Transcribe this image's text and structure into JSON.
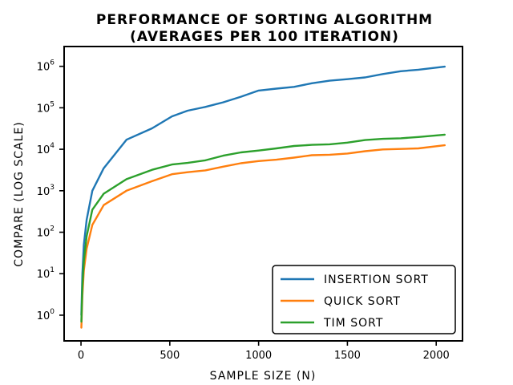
{
  "chart_data": {
    "type": "line",
    "title_lines": [
      "PERFORMANCE OF SORTING ALGORITHM",
      "(AVERAGES PER 100 ITERATION)"
    ],
    "xlabel": "SAMPLE SIZE (N)",
    "ylabel": "COMPARE (LOG SCALE)",
    "xlim": [
      -95,
      2148
    ],
    "ylim": [
      0.24,
      3000000
    ],
    "yscale": "log",
    "grid": false,
    "legend_position": "bottom-right",
    "x_ticks": [
      0,
      500,
      1000,
      1500,
      2000
    ],
    "x_tick_labels": [
      "0",
      "500",
      "1000",
      "1500",
      "2000"
    ],
    "y_ticks": [
      1,
      10,
      100,
      1000,
      10000,
      100000,
      1000000
    ],
    "y_tick_bases": [
      "10",
      "10",
      "10",
      "10",
      "10",
      "10",
      "10"
    ],
    "y_tick_exponents": [
      "0",
      "1",
      "2",
      "3",
      "4",
      "5",
      "6"
    ],
    "series": [
      {
        "name": "INSERTION SORT",
        "color": "#1f77b4",
        "points": [
          [
            2,
            1
          ],
          [
            8,
            10
          ],
          [
            16,
            50
          ],
          [
            32,
            200
          ],
          [
            64,
            1000
          ],
          [
            128,
            3500
          ],
          [
            256,
            17000
          ],
          [
            400,
            32000
          ],
          [
            512,
            62000
          ],
          [
            600,
            85000
          ],
          [
            700,
            105000
          ],
          [
            800,
            135000
          ],
          [
            900,
            185000
          ],
          [
            1000,
            260000
          ],
          [
            1100,
            290000
          ],
          [
            1200,
            320000
          ],
          [
            1300,
            390000
          ],
          [
            1400,
            450000
          ],
          [
            1500,
            490000
          ],
          [
            1600,
            540000
          ],
          [
            1700,
            650000
          ],
          [
            1800,
            760000
          ],
          [
            1900,
            830000
          ],
          [
            2048,
            980000
          ]
        ]
      },
      {
        "name": "QUICK SORT",
        "color": "#ff7f0e",
        "points": [
          [
            2,
            0.5
          ],
          [
            8,
            3
          ],
          [
            16,
            12
          ],
          [
            32,
            40
          ],
          [
            64,
            150
          ],
          [
            128,
            450
          ],
          [
            256,
            1000
          ],
          [
            400,
            1700
          ],
          [
            512,
            2500
          ],
          [
            600,
            2800
          ],
          [
            700,
            3100
          ],
          [
            800,
            3800
          ],
          [
            900,
            4600
          ],
          [
            1000,
            5200
          ],
          [
            1100,
            5600
          ],
          [
            1200,
            6300
          ],
          [
            1300,
            7200
          ],
          [
            1400,
            7400
          ],
          [
            1500,
            7900
          ],
          [
            1600,
            9000
          ],
          [
            1700,
            9900
          ],
          [
            1800,
            10200
          ],
          [
            1900,
            10500
          ],
          [
            2048,
            12500
          ]
        ]
      },
      {
        "name": "TIM SORT",
        "color": "#2ca02c",
        "points": [
          [
            2,
            0.7
          ],
          [
            8,
            5
          ],
          [
            16,
            20
          ],
          [
            32,
            80
          ],
          [
            64,
            350
          ],
          [
            128,
            850
          ],
          [
            256,
            1900
          ],
          [
            400,
            3200
          ],
          [
            512,
            4300
          ],
          [
            600,
            4700
          ],
          [
            700,
            5400
          ],
          [
            800,
            7000
          ],
          [
            900,
            8400
          ],
          [
            1000,
            9300
          ],
          [
            1100,
            10500
          ],
          [
            1200,
            12000
          ],
          [
            1300,
            12800
          ],
          [
            1400,
            13200
          ],
          [
            1500,
            14500
          ],
          [
            1600,
            16700
          ],
          [
            1700,
            17800
          ],
          [
            1800,
            18400
          ],
          [
            1900,
            19800
          ],
          [
            2048,
            22500
          ]
        ]
      }
    ]
  }
}
